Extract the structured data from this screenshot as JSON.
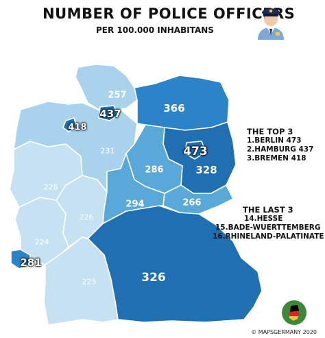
{
  "title": "NUMBER OF POLICE OFFICERS",
  "subtitle": "PER 100.000 INHABITANS",
  "colors": {
    "darkest": "#1f6fb2",
    "dark": "#2b84c7",
    "medium": "#58a8d8",
    "light": "#a9d2ec",
    "lightest": "#c6e1f2"
  },
  "states": [
    {
      "name": "Schleswig-Holstein",
      "value": "257"
    },
    {
      "name": "Hamburg",
      "value": "437"
    },
    {
      "name": "Bremen",
      "value": "418"
    },
    {
      "name": "Mecklenburg-Vorpommern",
      "value": "366"
    },
    {
      "name": "Berlin",
      "value": "473"
    },
    {
      "name": "Brandenburg",
      "value": "328"
    },
    {
      "name": "Lower Saxony",
      "value": "231"
    },
    {
      "name": "Saxony-Anhalt",
      "value": "286"
    },
    {
      "name": "North Rhine-Westphalia",
      "value": "228"
    },
    {
      "name": "Thuringia",
      "value": "294"
    },
    {
      "name": "Saxony",
      "value": "266"
    },
    {
      "name": "Hesse",
      "value": "226"
    },
    {
      "name": "Rhineland-Palatinate",
      "value": "224"
    },
    {
      "name": "Saarland",
      "value": "281"
    },
    {
      "name": "Baden-Wuerttemberg",
      "value": "225"
    },
    {
      "name": "Bavaria",
      "value": "326"
    }
  ],
  "top3": {
    "heading": "THE TOP 3",
    "items": [
      "1.BERLIN 473",
      "2.HAMBURG 437",
      "3.BREMEN 418"
    ]
  },
  "last3": {
    "heading": "THE LAST 3",
    "items": [
      "14.HESSE",
      "15.BADE-WUERTTEMBERG",
      "16.RHINELAND-PALATINATE"
    ]
  },
  "credit": "© MAPSGERMANY 2020",
  "icons": [
    "police-officer-icon",
    "germany-flag-badge-icon"
  ]
}
